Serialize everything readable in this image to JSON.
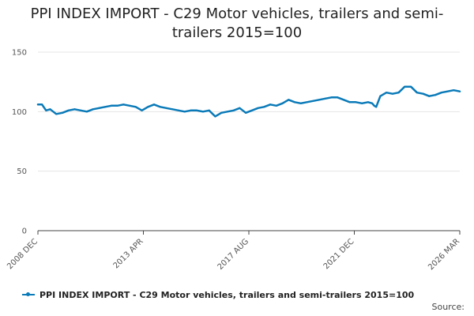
{
  "chart_data": {
    "type": "line",
    "title": "PPI INDEX IMPORT - C29 Motor vehicles, trailers and semi-trailers 2015=100",
    "xlabel": "",
    "ylabel": "",
    "ylim": [
      0,
      150
    ],
    "yticks": [
      "0",
      "50",
      "100",
      "150"
    ],
    "xticks": [
      "2008 DEC",
      "2013 APR",
      "2017 AUG",
      "2021 DEC",
      "2026 MAR"
    ],
    "xlim": [
      "2008-12",
      "2026-03"
    ],
    "grid": true,
    "legend_position": "bottom",
    "color": "#0a7ab8",
    "series": [
      {
        "name": "PPI INDEX IMPORT - C29 Motor vehicles, trailers and semi-trailers 2015=100",
        "x": [
          "2008-12",
          "2009-02",
          "2009-04",
          "2009-06",
          "2009-09",
          "2009-12",
          "2010-03",
          "2010-06",
          "2010-09",
          "2010-12",
          "2011-03",
          "2011-06",
          "2011-09",
          "2011-12",
          "2012-03",
          "2012-06",
          "2012-09",
          "2012-12",
          "2013-03",
          "2013-06",
          "2013-09",
          "2013-12",
          "2014-03",
          "2014-06",
          "2014-09",
          "2014-12",
          "2015-03",
          "2015-06",
          "2015-09",
          "2015-12",
          "2016-03",
          "2016-06",
          "2016-09",
          "2016-12",
          "2017-03",
          "2017-06",
          "2017-09",
          "2017-12",
          "2018-03",
          "2018-06",
          "2018-09",
          "2018-12",
          "2019-03",
          "2019-06",
          "2019-09",
          "2019-12",
          "2020-03",
          "2020-06",
          "2020-09",
          "2020-12",
          "2021-03",
          "2021-06",
          "2021-09",
          "2021-12",
          "2022-03",
          "2022-06",
          "2022-08",
          "2022-09",
          "2022-10",
          "2022-12",
          "2023-03",
          "2023-06",
          "2023-09",
          "2023-12",
          "2024-03",
          "2024-06",
          "2024-09",
          "2024-12",
          "2025-03",
          "2025-06",
          "2025-09",
          "2025-12",
          "2026-03"
        ],
        "values": [
          106,
          106,
          101,
          102,
          98,
          99,
          101,
          102,
          101,
          100,
          102,
          103,
          104,
          105,
          105,
          106,
          105,
          104,
          101,
          104,
          106,
          104,
          103,
          102,
          101,
          100,
          101,
          101,
          100,
          101,
          96,
          99,
          100,
          101,
          103,
          99,
          101,
          103,
          104,
          106,
          105,
          107,
          110,
          108,
          107,
          108,
          109,
          110,
          111,
          112,
          112,
          110,
          108,
          108,
          107,
          108,
          107,
          105,
          104,
          113,
          116,
          115,
          116,
          121,
          121,
          116,
          115,
          113,
          114,
          116,
          117,
          118,
          117
        ]
      }
    ]
  },
  "legend": {
    "label": "PPI INDEX IMPORT - C29 Motor vehicles, trailers and semi-trailers 2015=100"
  },
  "footer": {
    "source_label": "Source:"
  }
}
